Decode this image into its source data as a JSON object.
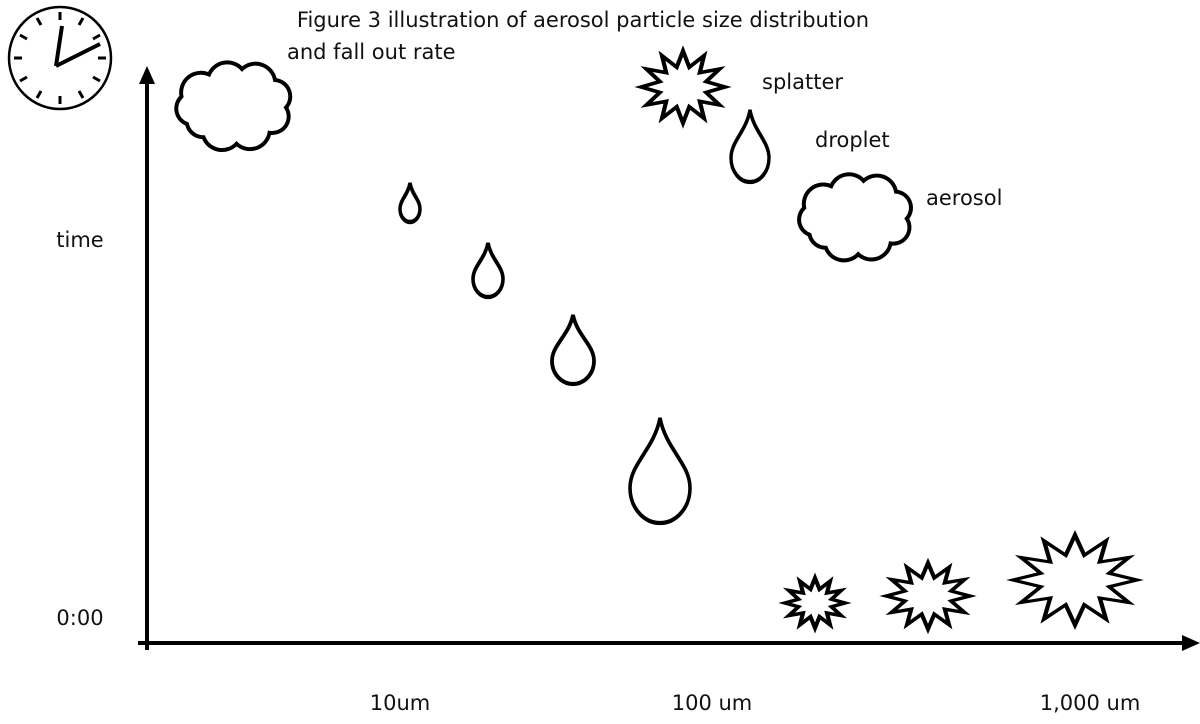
{
  "title": [
    "Figure 3 illustration of aerosol particle size distribution",
    "and fall out rate"
  ],
  "y_axis": {
    "top_label": "time",
    "bottom_label": "0:00"
  },
  "x_axis": {
    "labels": [
      "10um",
      "100 um",
      "1,000 um"
    ]
  },
  "legend": {
    "splatter": "splatter",
    "droplet": "droplet",
    "aerosol": "aerosol"
  }
}
